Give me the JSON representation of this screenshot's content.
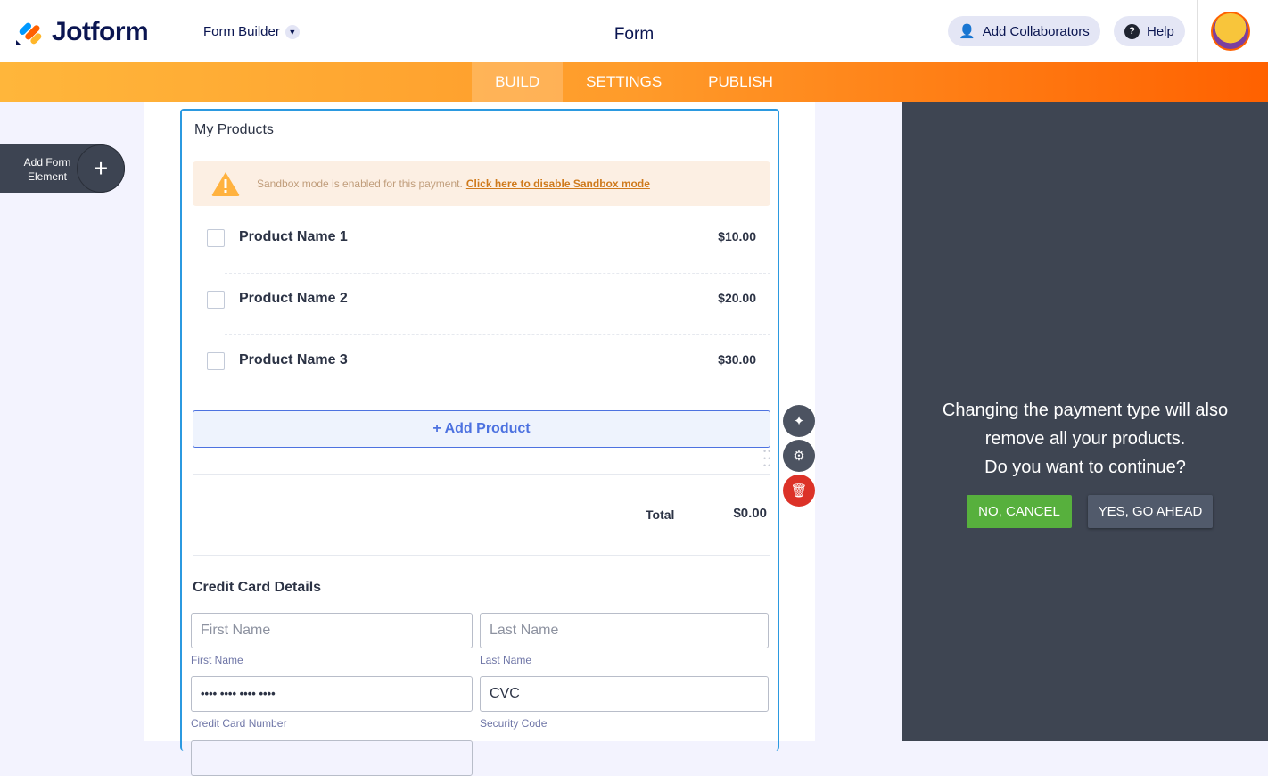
{
  "header": {
    "brand": "Jotform",
    "product": "Form Builder",
    "title": "Form",
    "add_collaborators": "Add Collaborators",
    "help": "Help"
  },
  "nav": {
    "tabs": [
      {
        "label": "BUILD",
        "active": true
      },
      {
        "label": "SETTINGS"
      },
      {
        "label": "PUBLISH"
      }
    ]
  },
  "sidebar": {
    "add_element": "Add Form Element"
  },
  "form": {
    "field_title": "My Products",
    "sandbox": {
      "text": "Sandbox mode is enabled for this payment.",
      "link": "Click here to disable Sandbox mode"
    },
    "products": [
      {
        "name": "Product Name 1",
        "price": "$10.00"
      },
      {
        "name": "Product Name 2",
        "price": "$20.00"
      },
      {
        "name": "Product Name 3",
        "price": "$30.00"
      }
    ],
    "add_product": "+ Add Product",
    "total_label": "Total",
    "total_value": "$0.00",
    "cc_heading": "Credit Card Details",
    "first_name": {
      "placeholder": "First Name",
      "label": "First Name"
    },
    "last_name": {
      "placeholder": "Last Name",
      "label": "Last Name"
    },
    "card_number": {
      "value": "•••• •••• •••• ••••",
      "label": "Credit Card Number"
    },
    "cvc": {
      "placeholder": "CVC",
      "label": "Security Code"
    }
  },
  "dialog": {
    "line1": "Changing the payment type will also",
    "line2": "remove all your products.",
    "line3": "Do you want to continue?",
    "cancel": "NO, CANCEL",
    "confirm": "YES, GO AHEAD"
  },
  "colors": {
    "accent": "#ff6100",
    "field_border": "#2b99e0",
    "cancel": "#57b03d",
    "confirm": "#515a6b",
    "delete": "#dc3228"
  }
}
